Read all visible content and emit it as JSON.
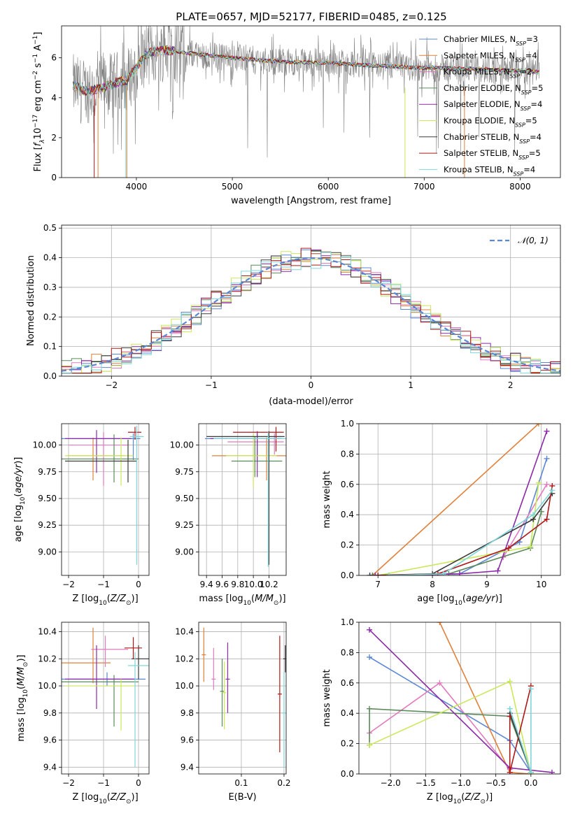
{
  "figure_title": "PLATE=0657, MJD=52177, FIBERID=0485, z=0.125",
  "colors": {
    "Chabrier MILES": "#5b87d6",
    "Salpeter MILES": "#e0803a",
    "Kroupa MILES": "#e07bbd",
    "Chabrier ELODIE": "#5a8a5a",
    "Salpeter ELODIE": "#8a2aa8",
    "Kroupa ELODIE": "#c9e85a",
    "Chabrier STELIB": "#3a3a3a",
    "Salpeter STELIB": "#b01818",
    "Kroupa STELIB": "#7fd6d8",
    "data": "#808080"
  },
  "chart_data": [
    {
      "id": "spectrum",
      "type": "line",
      "xlabel": "wavelength [Angstrom, rest frame]",
      "ylabel": "Flux [f_λ 10^{-17} erg cm^{-2} s^{-1} A^{-1}]",
      "xlim": [
        3220,
        8420
      ],
      "ylim": [
        0,
        7.6
      ],
      "xticks": [
        4000,
        5000,
        6000,
        7000,
        8000
      ],
      "yticks": [
        0,
        2,
        4,
        6
      ],
      "legend_position": "right",
      "legend": [
        {
          "ref": "Chabrier MILES",
          "text": "Chabrier MILES, N",
          "sub": "SSP",
          "tail": "=3"
        },
        {
          "ref": "Salpeter MILES",
          "text": "Salpeter MILES, N",
          "sub": "SSP",
          "tail": "=4"
        },
        {
          "ref": "Kroupa MILES",
          "text": "Kroupa MILES, N",
          "sub": "SSP",
          "tail": "=2"
        },
        {
          "ref": "Chabrier ELODIE",
          "text": "Chabrier ELODIE, N",
          "sub": "SSP",
          "tail": "=5"
        },
        {
          "ref": "Salpeter ELODIE",
          "text": "Salpeter ELODIE, N",
          "sub": "SSP",
          "tail": "=4"
        },
        {
          "ref": "Kroupa ELODIE",
          "text": "Kroupa ELODIE, N",
          "sub": "SSP",
          "tail": "=5"
        },
        {
          "ref": "Chabrier STELIB",
          "text": "Chabrier STELIB, N",
          "sub": "SSP",
          "tail": "=4"
        },
        {
          "ref": "Salpeter STELIB",
          "text": "Salpeter STELIB, N",
          "sub": "SSP",
          "tail": "=5"
        },
        {
          "ref": "Kroupa STELIB",
          "text": "Kroupa STELIB, N",
          "sub": "SSP",
          "tail": "=4"
        }
      ],
      "continuum": [
        [
          3340,
          4.6
        ],
        [
          3500,
          4.3
        ],
        [
          3700,
          4.6
        ],
        [
          3900,
          4.9
        ],
        [
          4000,
          5.5
        ],
        [
          4100,
          6.2
        ],
        [
          4300,
          6.4
        ],
        [
          4600,
          6.2
        ],
        [
          5000,
          6.0
        ],
        [
          5500,
          5.8
        ],
        [
          6000,
          5.75
        ],
        [
          6500,
          5.6
        ],
        [
          7000,
          5.5
        ],
        [
          7500,
          5.45
        ],
        [
          8000,
          5.35
        ],
        [
          8200,
          5.3
        ]
      ]
    },
    {
      "id": "residuals",
      "type": "line",
      "xlabel": "(data-model)/error",
      "ylabel": "Normed distribution",
      "xlim": [
        -2.5,
        2.5
      ],
      "ylim": [
        0,
        0.51
      ],
      "xticks": [
        -2,
        -1,
        0,
        1,
        2
      ],
      "yticks": [
        0.0,
        0.1,
        0.2,
        0.3,
        0.4,
        0.5
      ],
      "legend_position": "top-right",
      "legend_text": "𝒩(0, 1)",
      "normal_color": "#5b87d6",
      "bin_width": 0.1
    },
    {
      "id": "age_vs_Z",
      "type": "scatter",
      "xlabel": "Z [log10(Z/Z⊙)]",
      "ylabel": "age  [log10(age/yr)]",
      "xlim": [
        -2.2,
        0.3
      ],
      "ylim": [
        8.78,
        10.2
      ],
      "xticks": [
        -2,
        -1,
        0
      ],
      "yticks": [
        9.0,
        9.25,
        9.5,
        9.75,
        10.0
      ],
      "points": [
        {
          "ref": "Chabrier MILES",
          "x": -0.15,
          "y": 10.06,
          "xerr": [
            2.2,
            0.2
          ],
          "yerr": [
            0.2,
            0.05
          ]
        },
        {
          "ref": "Salpeter MILES",
          "x": -1.3,
          "y": 9.9,
          "xerr": [
            0.7,
            0.9
          ],
          "yerr": [
            0.23,
            0.17
          ]
        },
        {
          "ref": "Kroupa MILES",
          "x": -1.0,
          "y": 10.0,
          "xerr": [
            1.0,
            0.7
          ],
          "yerr": [
            0.38,
            0.12
          ]
        },
        {
          "ref": "Chabrier ELODIE",
          "x": -0.7,
          "y": 9.87,
          "xerr": [
            1.6,
            0.7
          ],
          "yerr": [
            0.22,
            0.23
          ]
        },
        {
          "ref": "Salpeter ELODIE",
          "x": -1.2,
          "y": 10.06,
          "xerr": [
            0.9,
            1.0
          ],
          "yerr": [
            0.32,
            0.08
          ]
        },
        {
          "ref": "Kroupa ELODIE",
          "x": -0.5,
          "y": 9.9,
          "xerr": [
            1.6,
            0.35
          ],
          "yerr": [
            0.28,
            0.17
          ]
        },
        {
          "ref": "Chabrier STELIB",
          "x": -0.3,
          "y": 9.85,
          "xerr": [
            1.8,
            0.25
          ],
          "yerr": [
            0.2,
            0.2
          ]
        },
        {
          "ref": "Salpeter STELIB",
          "x": -0.1,
          "y": 10.12,
          "xerr": [
            0.2,
            0.18
          ],
          "yerr": [
            0.07,
            0.05
          ]
        },
        {
          "ref": "Kroupa STELIB",
          "x": -0.05,
          "y": 10.08,
          "xerr": [
            0.2,
            0.2
          ],
          "yerr": [
            1.2,
            0.1
          ]
        }
      ]
    },
    {
      "id": "age_vs_mass",
      "type": "scatter",
      "xlabel": "mass [log10(M/M⊙)]",
      "ylabel": "",
      "xlim": [
        9.3,
        10.42
      ],
      "ylim": [
        8.78,
        10.2
      ],
      "xticks": [
        9.4,
        9.6,
        9.8,
        10.0,
        10.2
      ],
      "xticklabels": [
        "9.4",
        "",
        "9.6",
        "",
        "9.8",
        "",
        "10.0",
        "",
        "10.2"
      ],
      "yticks": [
        9.0,
        9.25,
        9.5,
        9.75,
        10.0
      ],
      "points": [
        {
          "ref": "Chabrier MILES",
          "x": 10.05,
          "y": 10.06,
          "xerr": [
            0.67,
            0.3
          ],
          "yerr": [
            0.2,
            0.05
          ]
        },
        {
          "ref": "Salpeter MILES",
          "x": 10.17,
          "y": 9.9,
          "xerr": [
            0.7,
            0.25
          ],
          "yerr": [
            0.23,
            0.17
          ]
        },
        {
          "ref": "Kroupa MILES",
          "x": 10.27,
          "y": 10.03,
          "xerr": [
            0.6,
            0.12
          ],
          "yerr": [
            0.12,
            0.08
          ]
        },
        {
          "ref": "Chabrier ELODIE",
          "x": 10.02,
          "y": 9.85,
          "xerr": [
            0.3,
            0.35
          ],
          "yerr": [
            0.15,
            0.23
          ]
        },
        {
          "ref": "Salpeter ELODIE",
          "x": 10.05,
          "y": 10.06,
          "xerr": [
            0.6,
            0.32
          ],
          "yerr": [
            0.36,
            0.07
          ]
        },
        {
          "ref": "Kroupa ELODIE",
          "x": 10.0,
          "y": 9.9,
          "xerr": [
            0.35,
            0.3
          ],
          "yerr": [
            0.3,
            0.2
          ]
        },
        {
          "ref": "Chabrier STELIB",
          "x": 10.2,
          "y": 10.08,
          "xerr": [
            0.8,
            0.2
          ],
          "yerr": [
            1.2,
            0.05
          ]
        },
        {
          "ref": "Salpeter STELIB",
          "x": 10.29,
          "y": 10.12,
          "xerr": [
            0.55,
            0.1
          ],
          "yerr": [
            0.18,
            0.05
          ]
        },
        {
          "ref": "Kroupa STELIB",
          "x": 10.19,
          "y": 10.06,
          "xerr": [
            0.7,
            0.25
          ],
          "yerr": [
            1.2,
            0.06
          ]
        }
      ]
    },
    {
      "id": "weight_vs_age",
      "type": "line",
      "xlabel": "age  [log10(age/yr)]",
      "ylabel": "mass weight",
      "xlim": [
        6.65,
        10.35
      ],
      "ylim": [
        0,
        1
      ],
      "xticks": [
        7,
        8,
        9,
        10
      ],
      "yticks": [
        0.0,
        0.2,
        0.4,
        0.6,
        0.8,
        1.0
      ],
      "series": [
        {
          "ref": "Chabrier MILES",
          "points": [
            [
              6.9,
              0.0
            ],
            [
              8.5,
              0.01
            ],
            [
              9.6,
              0.22
            ],
            [
              10.1,
              0.77
            ]
          ]
        },
        {
          "ref": "Salpeter MILES",
          "points": [
            [
              6.9,
              0.0
            ],
            [
              9.95,
              1.0
            ]
          ]
        },
        {
          "ref": "Kroupa MILES",
          "points": [
            [
              9.3,
              0.12
            ],
            [
              10.1,
              0.6
            ]
          ]
        },
        {
          "ref": "Chabrier ELODIE",
          "points": [
            [
              6.9,
              0.0
            ],
            [
              8.3,
              0.01
            ],
            [
              9.8,
              0.18
            ],
            [
              10.0,
              0.42
            ]
          ]
        },
        {
          "ref": "Salpeter ELODIE",
          "points": [
            [
              6.95,
              0.0
            ],
            [
              8.5,
              0.01
            ],
            [
              9.2,
              0.03
            ],
            [
              10.1,
              0.95
            ]
          ]
        },
        {
          "ref": "Kroupa ELODIE",
          "points": [
            [
              7.0,
              0.0
            ],
            [
              9.8,
              0.19
            ],
            [
              9.95,
              0.61
            ]
          ]
        },
        {
          "ref": "Chabrier STELIB",
          "points": [
            [
              6.85,
              0.0
            ],
            [
              8.0,
              0.01
            ],
            [
              9.85,
              0.37
            ],
            [
              10.2,
              0.54
            ]
          ]
        },
        {
          "ref": "Salpeter STELIB",
          "points": [
            [
              7.0,
              0.0
            ],
            [
              8.1,
              0.01
            ],
            [
              9.4,
              0.18
            ],
            [
              10.1,
              0.37
            ],
            [
              10.2,
              0.59
            ]
          ]
        },
        {
          "ref": "Kroupa STELIB",
          "points": [
            [
              7.2,
              0.0
            ],
            [
              8.2,
              0.01
            ],
            [
              9.85,
              0.4
            ],
            [
              10.2,
              0.56
            ]
          ]
        }
      ]
    },
    {
      "id": "mass_vs_Z",
      "type": "scatter",
      "xlabel": "Z [log10(Z/Z⊙)]",
      "ylabel": "mass [log10(M/M⊙)]",
      "xlim": [
        -2.2,
        0.3
      ],
      "ylim": [
        9.35,
        10.47
      ],
      "xticks": [
        -2,
        -1,
        0
      ],
      "yticks": [
        9.4,
        9.6,
        9.8,
        10.0,
        10.2,
        10.4
      ],
      "points": [
        {
          "ref": "Chabrier MILES",
          "x": -0.9,
          "y": 10.05,
          "xerr": [
            1.3,
            1.1
          ],
          "yerr": [
            0.05,
            0.05
          ]
        },
        {
          "ref": "Salpeter MILES",
          "x": -1.3,
          "y": 10.17,
          "xerr": [
            0.9,
            0.5
          ],
          "yerr": [
            0.15,
            0.26
          ]
        },
        {
          "ref": "Kroupa MILES",
          "x": -0.95,
          "y": 10.27,
          "xerr": [
            0.4,
            0.65
          ],
          "yerr": [
            0.13,
            0.1
          ]
        },
        {
          "ref": "Chabrier ELODIE",
          "x": -0.7,
          "y": 10.03,
          "xerr": [
            1.6,
            0.7
          ],
          "yerr": [
            0.33,
            0.05
          ]
        },
        {
          "ref": "Salpeter ELODIE",
          "x": -1.2,
          "y": 10.05,
          "xerr": [
            0.9,
            1.1
          ],
          "yerr": [
            0.22,
            0.25
          ]
        },
        {
          "ref": "Kroupa ELODIE",
          "x": -0.5,
          "y": 10.0,
          "xerr": [
            1.6,
            0.4
          ],
          "yerr": [
            0.33,
            0.05
          ]
        },
        {
          "ref": "Chabrier STELIB",
          "x": 0.0,
          "y": 10.2,
          "xerr": [
            0.2,
            0.3
          ],
          "yerr": [
            0.15,
            0.1
          ]
        },
        {
          "ref": "Salpeter STELIB",
          "x": -0.15,
          "y": 10.28,
          "xerr": [
            0.25,
            0.25
          ],
          "yerr": [
            0.08,
            0.08
          ]
        },
        {
          "ref": "Kroupa STELIB",
          "x": -0.1,
          "y": 10.15,
          "xerr": [
            0.2,
            0.4
          ],
          "yerr": [
            0.75,
            0.1
          ]
        }
      ]
    },
    {
      "id": "mass_vs_EBV",
      "type": "scatter",
      "xlabel": "E(B-V)",
      "ylabel": "",
      "xlim": [
        0.0,
        0.205
      ],
      "ylim": [
        9.35,
        10.47
      ],
      "xticks": [
        0.1,
        0.2
      ],
      "yticks": [
        9.4,
        9.6,
        9.8,
        10.0,
        10.2,
        10.4
      ],
      "points": [
        {
          "ref": "Salpeter MILES",
          "x": 0.012,
          "y": 10.23,
          "yerr": [
            0.2,
            0.2
          ]
        },
        {
          "ref": "Kroupa MILES",
          "x": 0.035,
          "y": 10.05,
          "yerr": [
            0.08,
            0.23
          ]
        },
        {
          "ref": "Chabrier ELODIE",
          "x": 0.055,
          "y": 9.96,
          "yerr": [
            0.26,
            0.24
          ]
        },
        {
          "ref": "Kroupa ELODIE",
          "x": 0.06,
          "y": 9.95,
          "yerr": [
            0.27,
            0.23
          ]
        },
        {
          "ref": "Salpeter ELODIE",
          "x": 0.068,
          "y": 10.05,
          "yerr": [
            0.25,
            0.27
          ]
        },
        {
          "ref": "Salpeter STELIB",
          "x": 0.19,
          "y": 9.94,
          "yerr": [
            0.43,
            0.43
          ]
        },
        {
          "ref": "Chabrier STELIB",
          "x": 0.203,
          "y": 10.2,
          "yerr": [
            0.1,
            0.1
          ]
        },
        {
          "ref": "Kroupa STELIB",
          "x": 0.2,
          "y": 9.8,
          "yerr": [
            0.4,
            0.3
          ]
        }
      ]
    },
    {
      "id": "weight_vs_Z",
      "type": "line",
      "xlabel": "Z [log10(Z/Z⊙)]",
      "ylabel": "mass weight",
      "xlim": [
        -2.45,
        0.42
      ],
      "ylim": [
        0,
        1
      ],
      "xticks": [
        -2.0,
        -1.5,
        -1.0,
        -0.5,
        0.0
      ],
      "yticks": [
        0.0,
        0.2,
        0.4,
        0.6,
        0.8,
        1.0
      ],
      "series": [
        {
          "ref": "Chabrier MILES",
          "points": [
            [
              -2.3,
              0.77
            ],
            [
              -0.3,
              0.22
            ],
            [
              0.0,
              0.01
            ]
          ]
        },
        {
          "ref": "Salpeter MILES",
          "points": [
            [
              -1.3,
              1.0
            ],
            [
              -0.3,
              0.01
            ],
            [
              0.0,
              0.0
            ]
          ]
        },
        {
          "ref": "Kroupa MILES",
          "points": [
            [
              -2.3,
              0.27
            ],
            [
              -1.3,
              0.6
            ],
            [
              -0.3,
              0.03
            ]
          ]
        },
        {
          "ref": "Chabrier ELODIE",
          "points": [
            [
              -2.3,
              0.19
            ],
            [
              -2.3,
              0.43
            ],
            [
              -0.3,
              0.38
            ],
            [
              0.0,
              0.01
            ]
          ]
        },
        {
          "ref": "Salpeter ELODIE",
          "points": [
            [
              -2.3,
              0.95
            ],
            [
              -0.3,
              0.04
            ],
            [
              0.3,
              0.01
            ]
          ]
        },
        {
          "ref": "Kroupa ELODIE",
          "points": [
            [
              -2.3,
              0.19
            ],
            [
              -0.3,
              0.61
            ],
            [
              0.0,
              0.0
            ]
          ]
        },
        {
          "ref": "Chabrier STELIB",
          "points": [
            [
              -0.3,
              0.4
            ],
            [
              0.0,
              0.01
            ]
          ]
        },
        {
          "ref": "Salpeter STELIB",
          "points": [
            [
              -0.3,
              0.38
            ],
            [
              -0.3,
              0.01
            ],
            [
              0.0,
              0.58
            ]
          ]
        },
        {
          "ref": "Kroupa STELIB",
          "points": [
            [
              -0.3,
              0.43
            ],
            [
              0.0,
              0.01
            ],
            [
              0.0,
              0.56
            ]
          ]
        }
      ]
    }
  ]
}
